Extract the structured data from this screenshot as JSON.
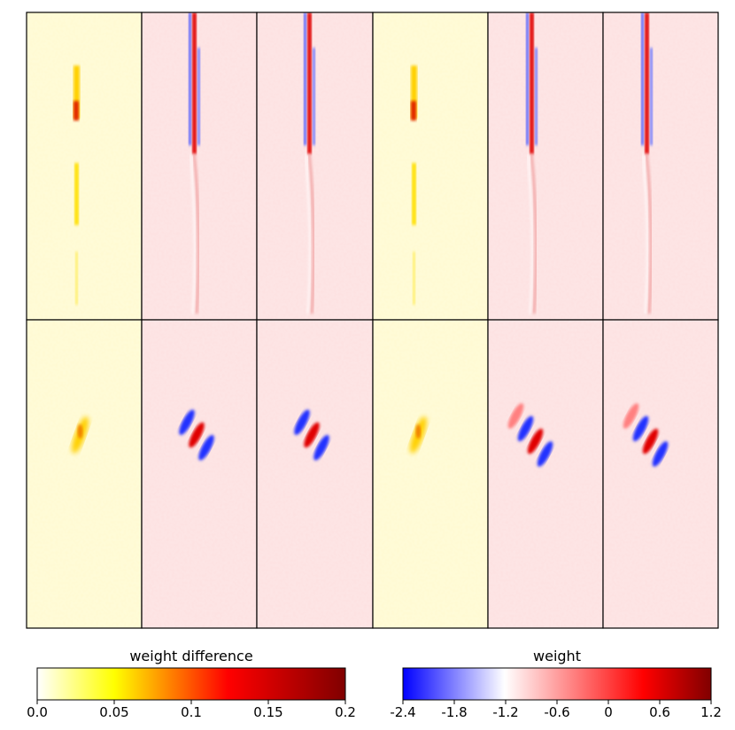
{
  "chart_data": {
    "type": "heatmap",
    "grid": {
      "rows": 2,
      "cols": 6
    },
    "panel_columns": [
      {
        "colormap": "difference"
      },
      {
        "colormap": "weight"
      },
      {
        "colormap": "weight"
      },
      {
        "colormap": "difference"
      },
      {
        "colormap": "weight"
      },
      {
        "colormap": "weight"
      }
    ],
    "panel_rows": [
      {
        "pattern": "vertical-streak"
      },
      {
        "pattern": "oriented-gabor"
      }
    ],
    "colorbars": [
      {
        "title": "weight difference",
        "ticks": [
          "0.0",
          "0.05",
          "0.1",
          "0.15",
          "0.2"
        ],
        "range": [
          0,
          0.2
        ],
        "colors": [
          "#ffffff",
          "#ffff00",
          "#ff0000",
          "#800000"
        ]
      },
      {
        "title": "weight",
        "ticks": [
          "-2.4",
          "-1.8",
          "-1.2",
          "-0.6",
          "0",
          "0.6",
          "1.2"
        ],
        "range": [
          -2.4,
          1.2
        ],
        "colors": [
          "#0000ff",
          "#ffffff",
          "#ff0000",
          "#800000"
        ]
      }
    ]
  }
}
